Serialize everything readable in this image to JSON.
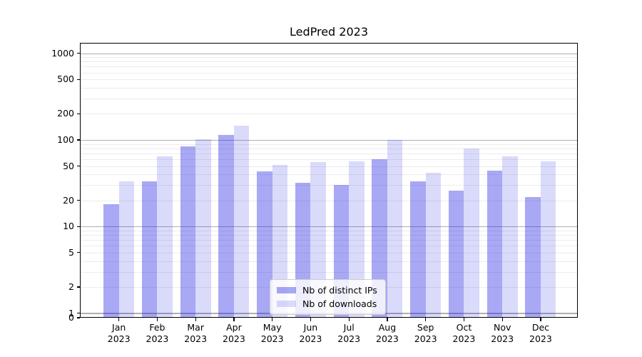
{
  "chart_data": {
    "type": "bar",
    "title": "LedPred 2023",
    "xlabel": "",
    "ylabel": "",
    "yscale": "log",
    "ylim": [
      0,
      1300
    ],
    "grid": "both",
    "legend_position": "lower center",
    "year": "2023",
    "categories": [
      "Jan",
      "Feb",
      "Mar",
      "Apr",
      "May",
      "Jun",
      "Jul",
      "Aug",
      "Sep",
      "Oct",
      "Nov",
      "Dec"
    ],
    "yticks": [
      1000,
      500,
      200,
      100,
      50,
      20,
      10,
      5,
      2,
      1,
      0
    ],
    "series": [
      {
        "name": "Nb of distinct IPs",
        "color": "rgba(25, 25, 230, 0.38)",
        "values": [
          18,
          33,
          85,
          115,
          43,
          32,
          30,
          60,
          33,
          26,
          44,
          22
        ]
      },
      {
        "name": "Nb of downloads",
        "color": "rgba(25, 25, 230, 0.16)",
        "values": [
          33,
          65,
          102,
          145,
          51,
          56,
          57,
          100,
          42,
          80,
          65,
          57
        ]
      }
    ],
    "colors": {
      "grid_major": "#b0b0b0",
      "grid_minor": "#ececec",
      "axis": "#000000",
      "legend_border": "#cccccc"
    }
  }
}
